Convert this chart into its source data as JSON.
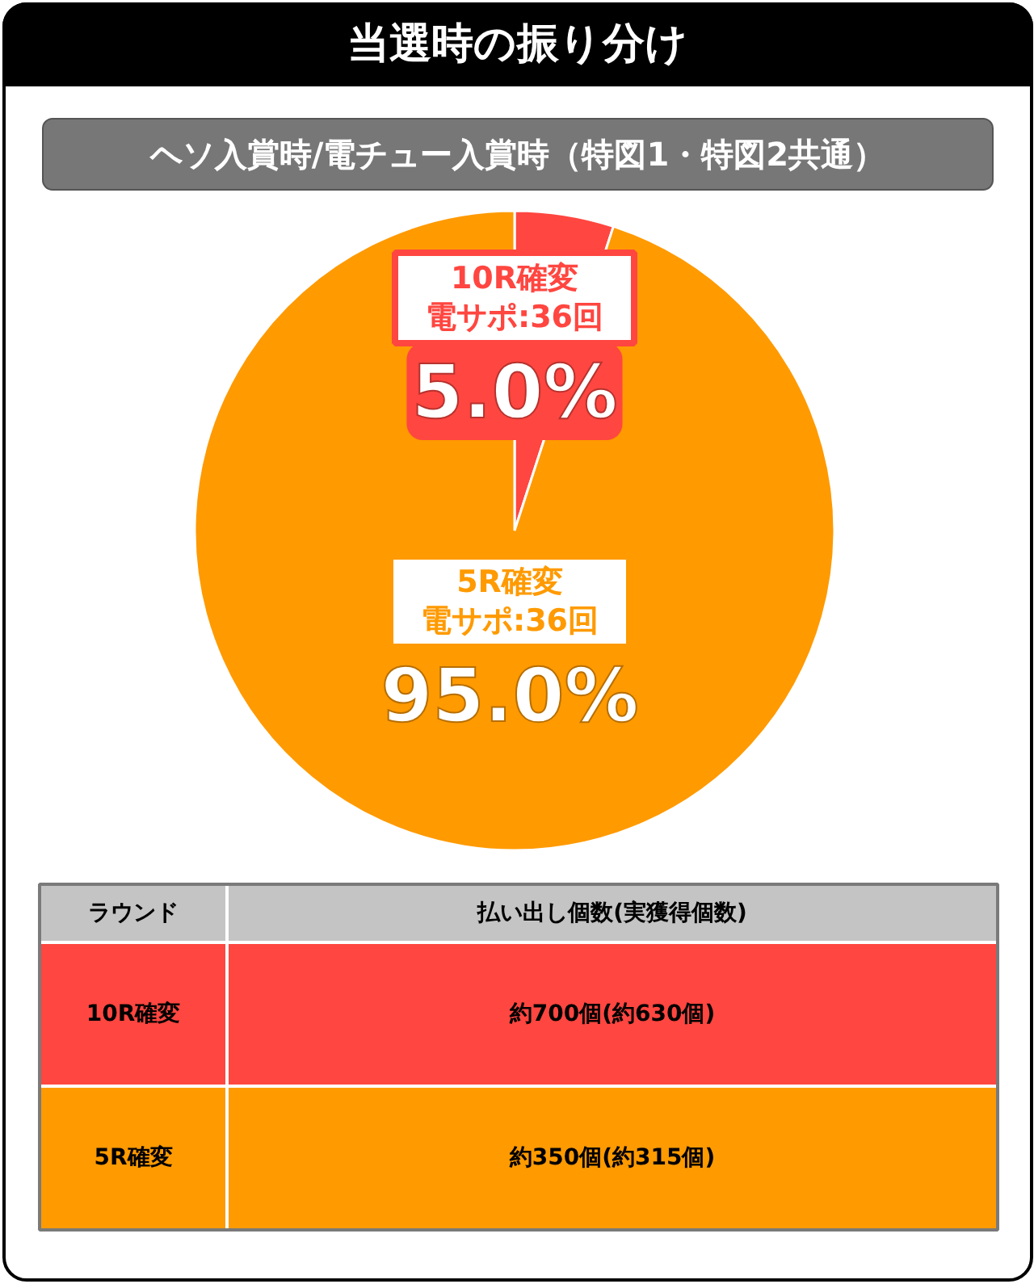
{
  "chart_data": {
    "type": "pie",
    "title": "当選時の振り分け",
    "subtitle": "ヘソ入賞時/電チュー入賞時（特図1・特図2共通）",
    "categories": [
      "10R確変電サポ:36回",
      "5R確変電サポ:36回"
    ],
    "values": [
      5.0,
      95.0
    ],
    "colors": [
      "#ff4640",
      "#ff9a00"
    ],
    "value_labels": [
      "5.0%",
      "95.0%"
    ],
    "annotations": [
      "ラウンド",
      "払い出し個数(実獲得個数)",
      "10R確変",
      "約700個(約630個)",
      "5R確変",
      "約350個(約315個)"
    ]
  }
}
